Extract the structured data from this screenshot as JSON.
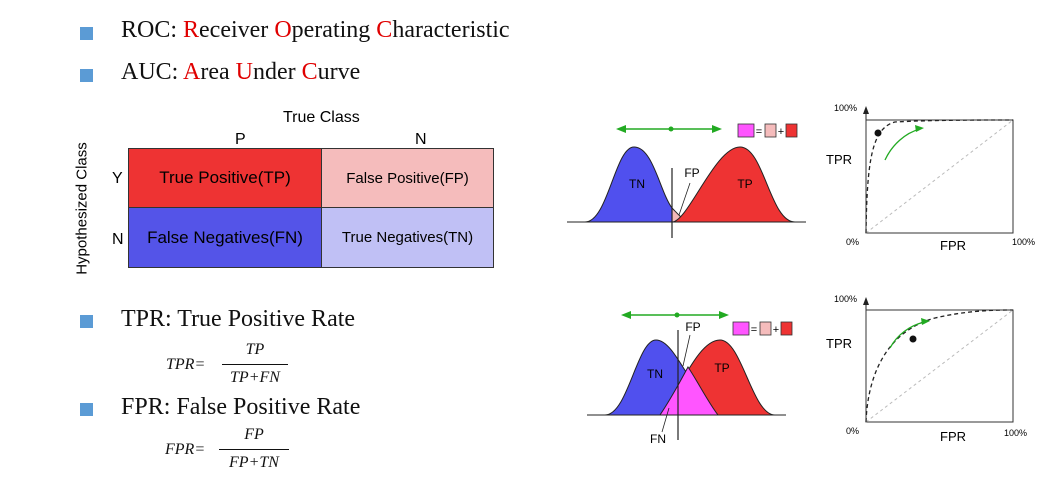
{
  "bullets": [
    {
      "parts": [
        {
          "t": "ROC: ",
          "red": false
        },
        {
          "t": "R",
          "red": true
        },
        {
          "t": "eceiver ",
          "red": false
        },
        {
          "t": "O",
          "red": true
        },
        {
          "t": "perating ",
          "red": false
        },
        {
          "t": "C",
          "red": true
        },
        {
          "t": "haracteristic",
          "red": false
        }
      ]
    },
    {
      "parts": [
        {
          "t": "AUC: ",
          "red": false
        },
        {
          "t": "A",
          "red": true
        },
        {
          "t": "rea ",
          "red": false
        },
        {
          "t": "U",
          "red": true
        },
        {
          "t": "nder ",
          "red": false
        },
        {
          "t": "C",
          "red": true
        },
        {
          "t": "urve",
          "red": false
        }
      ]
    },
    {
      "text": "TPR: True Positive Rate"
    },
    {
      "text": "FPR: False Positive Rate"
    }
  ],
  "matrix": {
    "true_class_label": "True Class",
    "hypothesized_label": "Hypothesized Class",
    "col_p": "P",
    "col_n": "N",
    "row_y": "Y",
    "row_n": "N",
    "tp": "True Positive(TP)",
    "fp": "False Positive(FP)",
    "fn": "False Negatives(FN)",
    "tn": "True Negatives(TN)",
    "colors": {
      "tp": "#ee3333",
      "fp": "#f5bcbc",
      "fn": "#5454e8",
      "tn": "#c0c0f5"
    }
  },
  "formulas": {
    "tpr": {
      "lhs": "TPR=",
      "num": "TP",
      "den": "TP+FN"
    },
    "fpr": {
      "lhs": "FPR=",
      "num": "FP",
      "den": "FP+TN"
    }
  },
  "distributions": {
    "tn": "TN",
    "tp": "TP",
    "fp": "FP",
    "fn": "FN",
    "colors": {
      "negative": "#5050ee",
      "positive": "#ee3333",
      "overlap_top": "#f2b8b8",
      "overlap_bottom": "#ff55ff",
      "arrow": "#22aa22"
    }
  },
  "roc": {
    "y_max": "100%",
    "y_label": "TPR",
    "x_label": "FPR",
    "origin": "0%",
    "x_max": "100%"
  }
}
